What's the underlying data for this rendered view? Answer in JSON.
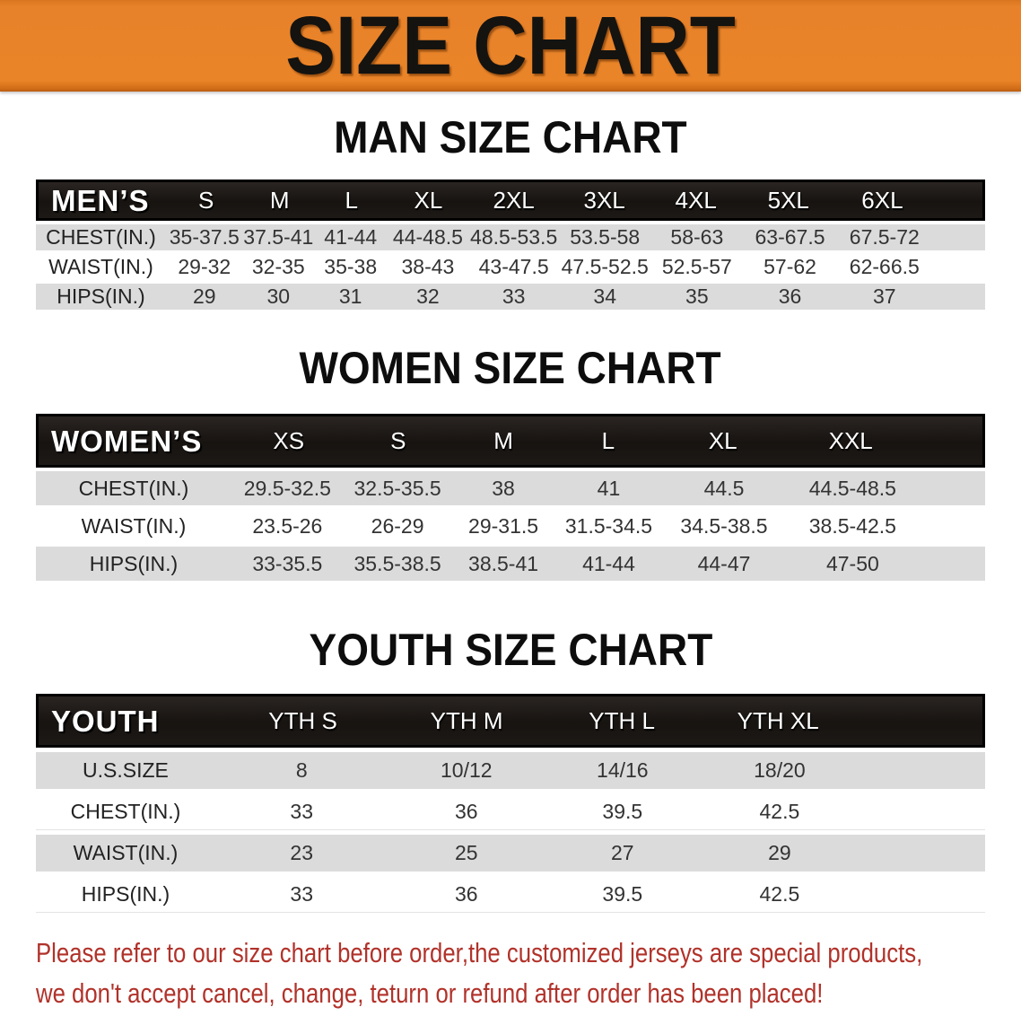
{
  "banner": {
    "title": "SIZE CHART"
  },
  "colors": {
    "banner_orange": "#E8822A",
    "header_black": "#171310",
    "row_gray": "#DBDBDB",
    "disclaimer_red": "#B1322A"
  },
  "men": {
    "heading": "MAN SIZE CHART",
    "label": "MEN’S",
    "sizes": [
      "S",
      "M",
      "L",
      "XL",
      "2XL",
      "3XL",
      "4XL",
      "5XL",
      "6XL"
    ],
    "rows": [
      {
        "label": "CHEST(IN.)",
        "values": [
          "35-37.5",
          "37.5-41",
          "41-44",
          "44-48.5",
          "48.5-53.5",
          "53.5-58",
          "58-63",
          "63-67.5",
          "67.5-72"
        ]
      },
      {
        "label": "WAIST(IN.)",
        "values": [
          "29-32",
          "32-35",
          "35-38",
          "38-43",
          "43-47.5",
          "47.5-52.5",
          "52.5-57",
          "57-62",
          "62-66.5"
        ]
      },
      {
        "label": "HIPS(IN.)",
        "values": [
          "29",
          "30",
          "31",
          "32",
          "33",
          "34",
          "35",
          "36",
          "37"
        ]
      }
    ]
  },
  "women": {
    "heading": "WOMEN SIZE CHART",
    "label": "WOMEN’S",
    "sizes": [
      "XS",
      "S",
      "M",
      "L",
      "XL",
      "XXL"
    ],
    "rows": [
      {
        "label": "CHEST(IN.)",
        "values": [
          "29.5-32.5",
          "32.5-35.5",
          "38",
          "41",
          "44.5",
          "44.5-48.5"
        ]
      },
      {
        "label": "WAIST(IN.)",
        "values": [
          "23.5-26",
          "26-29",
          "29-31.5",
          "31.5-34.5",
          "34.5-38.5",
          "38.5-42.5"
        ]
      },
      {
        "label": "HIPS(IN.)",
        "values": [
          "33-35.5",
          "35.5-38.5",
          "38.5-41",
          "41-44",
          "44-47",
          "47-50"
        ]
      }
    ]
  },
  "youth": {
    "heading": "YOUTH SIZE CHART",
    "label": "YOUTH",
    "sizes": [
      "YTH S",
      "YTH M",
      "YTH L",
      "YTH XL"
    ],
    "rows": [
      {
        "label": "U.S.SIZE",
        "values": [
          "8",
          "10/12",
          "14/16",
          "18/20"
        ]
      },
      {
        "label": "CHEST(IN.)",
        "values": [
          "33",
          "36",
          "39.5",
          "42.5"
        ]
      },
      {
        "label": "WAIST(IN.)",
        "values": [
          "23",
          "25",
          "27",
          "29"
        ]
      },
      {
        "label": "HIPS(IN.)",
        "values": [
          "33",
          "36",
          "39.5",
          "42.5"
        ]
      }
    ]
  },
  "disclaimer": {
    "line1": "Please refer to our size chart before order,the customized jerseys are special products,",
    "line2": "we don't accept cancel, change, teturn or refund after order has been placed!"
  },
  "chart_data": [
    {
      "type": "table",
      "title": "MAN SIZE CHART",
      "columns": [
        "MEN’S",
        "S",
        "M",
        "L",
        "XL",
        "2XL",
        "3XL",
        "4XL",
        "5XL",
        "6XL"
      ],
      "rows": [
        [
          "CHEST(IN.)",
          "35-37.5",
          "37.5-41",
          "41-44",
          "44-48.5",
          "48.5-53.5",
          "53.5-58",
          "58-63",
          "63-67.5",
          "67.5-72"
        ],
        [
          "WAIST(IN.)",
          "29-32",
          "32-35",
          "35-38",
          "38-43",
          "43-47.5",
          "47.5-52.5",
          "52.5-57",
          "57-62",
          "62-66.5"
        ],
        [
          "HIPS(IN.)",
          "29",
          "30",
          "31",
          "32",
          "33",
          "34",
          "35",
          "36",
          "37"
        ]
      ]
    },
    {
      "type": "table",
      "title": "WOMEN SIZE CHART",
      "columns": [
        "WOMEN’S",
        "XS",
        "S",
        "M",
        "L",
        "XL",
        "XXL"
      ],
      "rows": [
        [
          "CHEST(IN.)",
          "29.5-32.5",
          "32.5-35.5",
          "38",
          "41",
          "44.5",
          "44.5-48.5"
        ],
        [
          "WAIST(IN.)",
          "23.5-26",
          "26-29",
          "29-31.5",
          "31.5-34.5",
          "34.5-38.5",
          "38.5-42.5"
        ],
        [
          "HIPS(IN.)",
          "33-35.5",
          "35.5-38.5",
          "38.5-41",
          "41-44",
          "44-47",
          "47-50"
        ]
      ]
    },
    {
      "type": "table",
      "title": "YOUTH SIZE CHART",
      "columns": [
        "YOUTH",
        "YTH S",
        "YTH M",
        "YTH L",
        "YTH XL"
      ],
      "rows": [
        [
          "U.S.SIZE",
          "8",
          "10/12",
          "14/16",
          "18/20"
        ],
        [
          "CHEST(IN.)",
          "33",
          "36",
          "39.5",
          "42.5"
        ],
        [
          "WAIST(IN.)",
          "23",
          "25",
          "27",
          "29"
        ],
        [
          "HIPS(IN.)",
          "33",
          "36",
          "39.5",
          "42.5"
        ]
      ]
    }
  ]
}
